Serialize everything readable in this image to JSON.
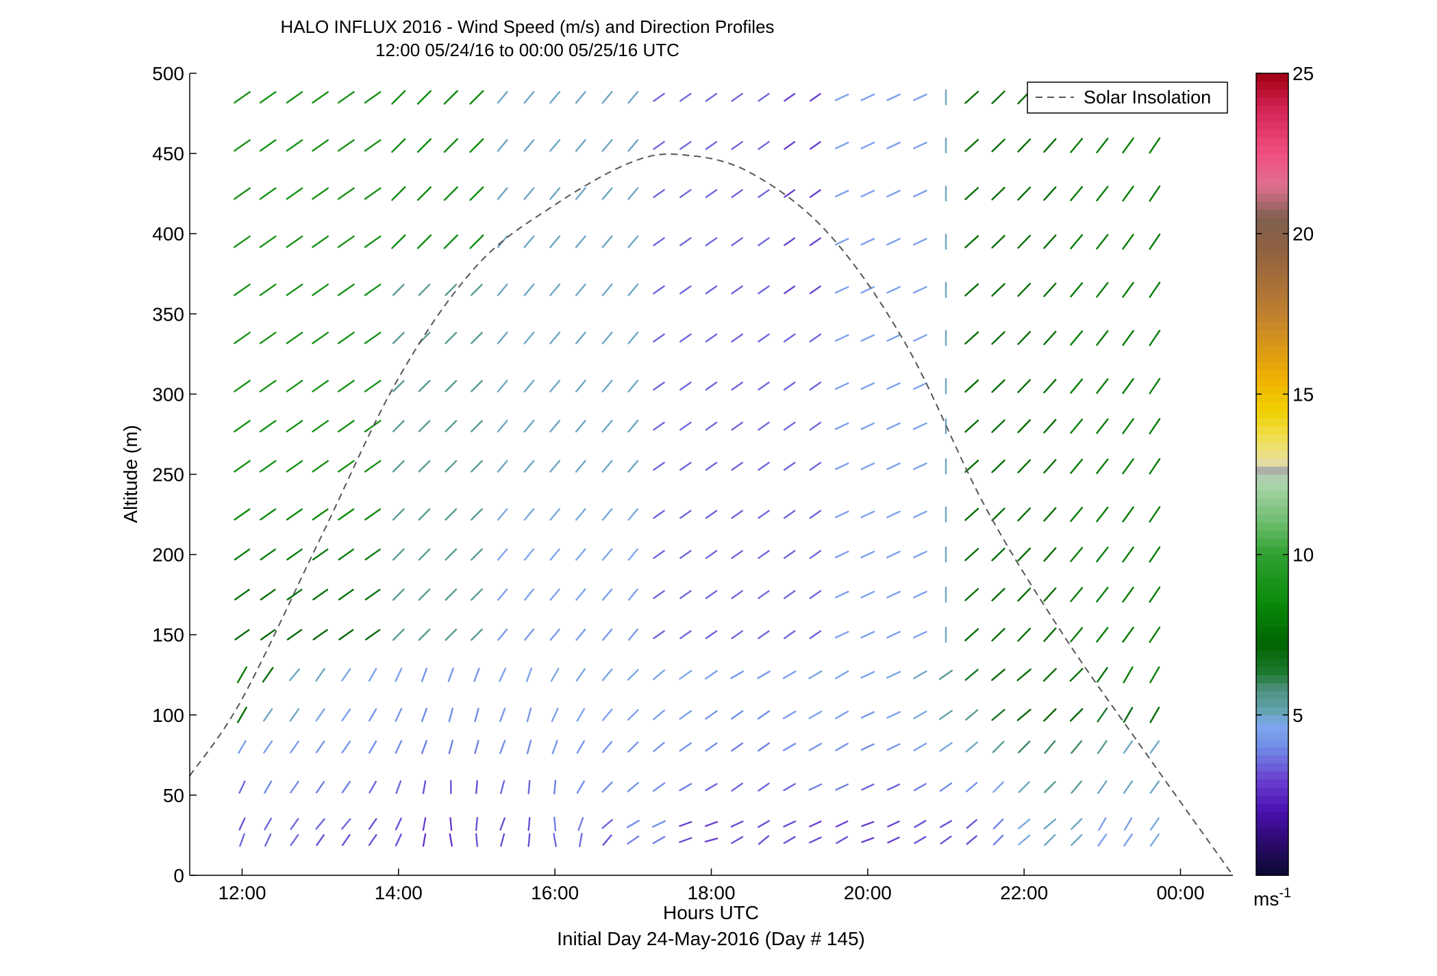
{
  "chart_data": {
    "type": "quiver",
    "title": "HALO INFLUX 2016 - Wind Speed (m/s) and Direction Profiles",
    "subtitle": "12:00 05/24/16 to 00:00 05/25/16  UTC",
    "xlabel": "Hours UTC",
    "xlabel2": "Initial Day 24-May-2016 (Day # 145)",
    "ylabel": "Altitude (m)",
    "xlim": [
      11.33,
      24.67
    ],
    "ylim": [
      0,
      500
    ],
    "x_ticks": [
      12,
      14,
      16,
      18,
      20,
      22,
      24
    ],
    "x_tick_labels": [
      "12:00",
      "14:00",
      "16:00",
      "18:00",
      "20:00",
      "22:00",
      "00:00"
    ],
    "y_ticks": [
      0,
      50,
      100,
      150,
      200,
      250,
      300,
      350,
      400,
      450,
      500
    ],
    "y_tick_labels": [
      "0",
      "50",
      "100",
      "150",
      "200",
      "250",
      "300",
      "350",
      "400",
      "450",
      "500"
    ],
    "colorbar": {
      "range": [
        0,
        25
      ],
      "ticks": [
        5,
        10,
        15,
        20,
        25
      ],
      "tick_labels": [
        "5",
        "10",
        "15",
        "20",
        "25"
      ],
      "unit_label": "ms",
      "unit_exponent": "-1"
    },
    "legend": {
      "position": "top-right",
      "entries": [
        "Solar Insolation"
      ]
    },
    "solar_insolation": {
      "style": "dashed",
      "color": "#555555",
      "x": [
        11.33,
        12,
        13,
        14,
        15,
        16,
        17,
        17.67,
        18.5,
        19.5,
        20.5,
        21.5,
        22.5,
        23.5,
        24.67
      ],
      "y": [
        62,
        110,
        210,
        310,
        380,
        418,
        445,
        449,
        438,
        400,
        330,
        230,
        150,
        80,
        0
      ]
    },
    "wind_vectors": {
      "times_hours": [
        12,
        12.33,
        12.67,
        13,
        13.33,
        13.67,
        14,
        14.33,
        14.67,
        15,
        15.33,
        15.67,
        16,
        16.33,
        16.67,
        17,
        17.33,
        17.67,
        18,
        18.33,
        18.67,
        19,
        19.33,
        19.67,
        20,
        20.33,
        20.67,
        21,
        21.33,
        21.67,
        22,
        22.33,
        22.67,
        23,
        23.33,
        23.67
      ],
      "altitudes_m": [
        22,
        32,
        55,
        80,
        100,
        125,
        150,
        175,
        200,
        225,
        255,
        280,
        305,
        335,
        365,
        395,
        425,
        455,
        485
      ],
      "rows": [
        {
          "altitude": 22,
          "speed": [
            3.5,
            3.5,
            3.5,
            3.2,
            3.2,
            3.2,
            3.2,
            2.8,
            2.8,
            3.2,
            3.2,
            3.2,
            3.5,
            3.5,
            3.2,
            3.8,
            3.8,
            3.2,
            3.0,
            3.2,
            3.2,
            3.2,
            3.2,
            3.2,
            3.0,
            3.0,
            3.2,
            3.2,
            3.2,
            3.8,
            4.8,
            5.0,
            5.0,
            4.5,
            4.5,
            4.8
          ],
          "dir": [
            200,
            205,
            215,
            215,
            215,
            215,
            205,
            190,
            170,
            175,
            195,
            185,
            170,
            190,
            220,
            235,
            240,
            250,
            255,
            240,
            230,
            240,
            245,
            240,
            250,
            245,
            240,
            235,
            230,
            225,
            230,
            225,
            225,
            215,
            215,
            215
          ]
        },
        {
          "altitude": 32,
          "speed": [
            3.2,
            3.5,
            3.5,
            3.5,
            3.5,
            3.2,
            3.2,
            3.0,
            3.0,
            3.2,
            3.2,
            3.2,
            3.8,
            3.8,
            3.5,
            4.0,
            4.0,
            3.0,
            3.0,
            3.2,
            3.2,
            3.2,
            3.0,
            3.0,
            3.0,
            3.0,
            3.2,
            3.2,
            3.2,
            3.8,
            4.8,
            5.0,
            5.0,
            4.5,
            4.5,
            4.8
          ],
          "dir": [
            205,
            210,
            215,
            220,
            220,
            215,
            205,
            190,
            175,
            185,
            200,
            185,
            175,
            200,
            230,
            240,
            245,
            250,
            250,
            245,
            240,
            245,
            245,
            245,
            250,
            245,
            240,
            240,
            230,
            225,
            230,
            230,
            225,
            210,
            210,
            215
          ]
        },
        {
          "altitude": 55,
          "speed": [
            3.5,
            4.0,
            4.0,
            3.8,
            3.8,
            3.5,
            3.5,
            3.2,
            3.2,
            3.2,
            3.5,
            3.5,
            3.8,
            4.0,
            4.0,
            4.2,
            4.2,
            3.8,
            3.5,
            3.5,
            3.5,
            3.5,
            3.8,
            3.8,
            3.5,
            3.5,
            3.8,
            4.0,
            4.2,
            4.5,
            5.0,
            5.5,
            5.5,
            5.0,
            5.0,
            5.0
          ],
          "dir": [
            205,
            210,
            215,
            215,
            215,
            210,
            200,
            190,
            180,
            185,
            195,
            185,
            185,
            210,
            225,
            230,
            235,
            240,
            240,
            235,
            235,
            240,
            245,
            245,
            245,
            245,
            240,
            235,
            230,
            225,
            225,
            225,
            220,
            215,
            215,
            215
          ]
        },
        {
          "altitude": 80,
          "speed": [
            4.5,
            4.5,
            4.5,
            4.2,
            4.2,
            4.0,
            4.0,
            3.8,
            3.8,
            3.8,
            4.0,
            4.0,
            4.2,
            4.2,
            4.2,
            4.2,
            4.2,
            4.2,
            4.0,
            3.8,
            3.8,
            4.0,
            4.2,
            4.2,
            4.0,
            4.2,
            4.5,
            4.8,
            5.0,
            5.5,
            6.0,
            6.0,
            6.0,
            5.5,
            5.0,
            5.0
          ],
          "dir": [
            210,
            215,
            215,
            215,
            215,
            210,
            205,
            200,
            195,
            195,
            200,
            195,
            200,
            210,
            220,
            225,
            230,
            235,
            235,
            235,
            235,
            240,
            240,
            240,
            245,
            245,
            240,
            235,
            230,
            225,
            225,
            220,
            220,
            215,
            215,
            215
          ]
        },
        {
          "altitude": 100,
          "speed": [
            7.5,
            5.0,
            5.0,
            4.8,
            4.5,
            4.2,
            4.2,
            4.0,
            4.0,
            4.0,
            4.2,
            4.2,
            4.5,
            4.5,
            4.5,
            4.5,
            4.5,
            4.5,
            4.2,
            4.0,
            4.0,
            4.2,
            4.5,
            4.5,
            4.2,
            4.5,
            4.8,
            5.2,
            5.5,
            6.5,
            7.0,
            7.0,
            7.0,
            6.5,
            7.0,
            7.5
          ],
          "dir": [
            210,
            215,
            215,
            215,
            215,
            210,
            205,
            200,
            195,
            195,
            200,
            195,
            205,
            210,
            220,
            225,
            230,
            235,
            235,
            235,
            235,
            240,
            240,
            240,
            245,
            245,
            240,
            235,
            230,
            230,
            230,
            225,
            225,
            215,
            210,
            210
          ]
        },
        {
          "altitude": 125,
          "speed": [
            8.0,
            7.5,
            5.0,
            5.0,
            4.8,
            4.5,
            4.5,
            4.2,
            4.2,
            4.2,
            4.5,
            4.5,
            4.8,
            4.8,
            4.8,
            4.8,
            4.8,
            4.8,
            4.5,
            4.2,
            4.2,
            4.5,
            4.8,
            4.8,
            4.5,
            4.8,
            5.0,
            5.5,
            6.5,
            7.0,
            7.5,
            7.5,
            7.5,
            7.5,
            8.0,
            8.0
          ],
          "dir": [
            210,
            215,
            220,
            215,
            215,
            210,
            205,
            200,
            200,
            200,
            205,
            200,
            210,
            215,
            220,
            225,
            230,
            235,
            235,
            240,
            240,
            240,
            240,
            240,
            245,
            245,
            240,
            235,
            230,
            230,
            230,
            225,
            225,
            215,
            210,
            210
          ]
        }
      ]
    }
  }
}
